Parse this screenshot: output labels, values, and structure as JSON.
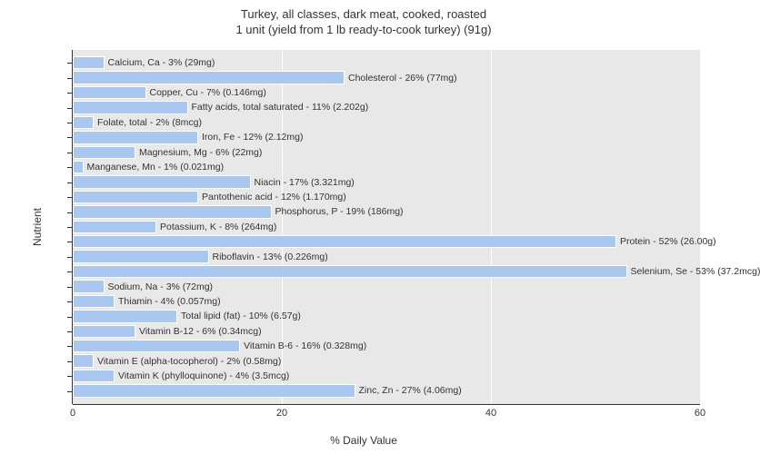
{
  "chart": {
    "type": "bar-horizontal",
    "title_line1": "Turkey, all classes, dark meat, cooked, roasted",
    "title_line2": "1 unit (yield from 1 lb ready-to-cook turkey) (91g)",
    "title_fontsize": 13,
    "title_color": "#333333",
    "xlabel": "% Daily Value",
    "ylabel": "Nutrient",
    "label_fontsize": 12,
    "xlim_min": 0,
    "xlim_max": 60,
    "xtick_step": 20,
    "xticks": [
      0,
      20,
      40,
      60
    ],
    "background_color": "#ffffff",
    "plot_bg_color": "#e8e8e8",
    "grid_color": "#ffffff",
    "bar_color": "#a8c8f0",
    "bar_border_color": "#ffffff",
    "text_color": "#333333",
    "tick_fontsize": 11,
    "bar_label_fontsize": 10.5,
    "nutrients": [
      {
        "name": "Calcium, Ca",
        "pct": 3,
        "amount": "29mg"
      },
      {
        "name": "Cholesterol",
        "pct": 26,
        "amount": "77mg"
      },
      {
        "name": "Copper, Cu",
        "pct": 7,
        "amount": "0.146mg"
      },
      {
        "name": "Fatty acids, total saturated",
        "pct": 11,
        "amount": "2.202g"
      },
      {
        "name": "Folate, total",
        "pct": 2,
        "amount": "8mcg"
      },
      {
        "name": "Iron, Fe",
        "pct": 12,
        "amount": "2.12mg"
      },
      {
        "name": "Magnesium, Mg",
        "pct": 6,
        "amount": "22mg"
      },
      {
        "name": "Manganese, Mn",
        "pct": 1,
        "amount": "0.021mg"
      },
      {
        "name": "Niacin",
        "pct": 17,
        "amount": "3.321mg"
      },
      {
        "name": "Pantothenic acid",
        "pct": 12,
        "amount": "1.170mg"
      },
      {
        "name": "Phosphorus, P",
        "pct": 19,
        "amount": "186mg"
      },
      {
        "name": "Potassium, K",
        "pct": 8,
        "amount": "264mg"
      },
      {
        "name": "Protein",
        "pct": 52,
        "amount": "26.00g"
      },
      {
        "name": "Riboflavin",
        "pct": 13,
        "amount": "0.226mg"
      },
      {
        "name": "Selenium, Se",
        "pct": 53,
        "amount": "37.2mcg"
      },
      {
        "name": "Sodium, Na",
        "pct": 3,
        "amount": "72mg"
      },
      {
        "name": "Thiamin",
        "pct": 4,
        "amount": "0.057mg"
      },
      {
        "name": "Total lipid (fat)",
        "pct": 10,
        "amount": "6.57g"
      },
      {
        "name": "Vitamin B-12",
        "pct": 6,
        "amount": "0.34mcg"
      },
      {
        "name": "Vitamin B-6",
        "pct": 16,
        "amount": "0.328mg"
      },
      {
        "name": "Vitamin E (alpha-tocopherol)",
        "pct": 2,
        "amount": "0.58mg"
      },
      {
        "name": "Vitamin K (phylloquinone)",
        "pct": 4,
        "amount": "3.5mcg"
      },
      {
        "name": "Zinc, Zn",
        "pct": 27,
        "amount": "4.06mg"
      }
    ]
  }
}
